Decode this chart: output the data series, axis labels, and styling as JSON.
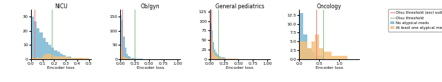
{
  "titles": [
    "NICU",
    "Ob/gyn",
    "General pediatrics",
    "Oncology"
  ],
  "xlabel": "Encoder loss",
  "blue_color": "#7ab8d4",
  "orange_color": "#f5c07a",
  "otsu_excl_color": "#f08080",
  "otsu_color": "#90c090",
  "nicu": {
    "blue_edges": [
      0.0,
      0.025,
      0.05,
      0.075,
      0.1,
      0.125,
      0.15,
      0.175,
      0.2,
      0.225,
      0.25,
      0.275,
      0.3,
      0.325,
      0.35,
      0.375,
      0.4,
      0.425,
      0.45,
      0.475,
      0.5
    ],
    "blue_counts": [
      30,
      27,
      22,
      19,
      15,
      12,
      10,
      8,
      6,
      5,
      4,
      3,
      2,
      2,
      1,
      1,
      1,
      1,
      0,
      0
    ],
    "orange_edges": [
      0.0,
      0.025,
      0.05,
      0.075,
      0.1,
      0.125,
      0.15,
      0.175,
      0.2,
      0.225,
      0.25,
      0.275,
      0.3,
      0.325,
      0.35,
      0.375,
      0.4,
      0.425,
      0.45,
      0.475,
      0.5
    ],
    "orange_counts": [
      1,
      1,
      1,
      1,
      3,
      4,
      4,
      3,
      2,
      2,
      2,
      2,
      2,
      1,
      1,
      1,
      1,
      1,
      1,
      1
    ],
    "otsu_excl": 0.03,
    "otsu": 0.18,
    "xlim": [
      0,
      0.52
    ],
    "ylim": [
      0,
      35
    ],
    "yticks": [
      0,
      10,
      20,
      30
    ],
    "xticks": [
      0.0,
      0.1,
      0.2,
      0.3,
      0.4,
      0.5
    ]
  },
  "obgyn": {
    "blue_edges": [
      0.0,
      0.025,
      0.05,
      0.075,
      0.1,
      0.125,
      0.15,
      0.175,
      0.2,
      0.225,
      0.25,
      0.275,
      0.3,
      0.325,
      0.35,
      0.375,
      0.4,
      0.425,
      0.45,
      0.475,
      0.5,
      0.525,
      0.55,
      0.575,
      0.6,
      0.625,
      0.65,
      0.675,
      0.7,
      0.725,
      0.75,
      0.775,
      0.8,
      0.825,
      0.85,
      0.875,
      0.9,
      0.925,
      0.95,
      0.975,
      1.0
    ],
    "blue_counts": [
      155,
      140,
      80,
      40,
      20,
      12,
      8,
      5,
      4,
      3,
      2,
      2,
      1,
      1,
      1,
      1,
      0,
      0,
      0,
      0,
      0,
      0,
      0,
      0,
      0,
      0,
      0,
      0,
      0,
      0,
      0,
      0,
      0,
      0,
      0,
      0,
      0,
      0,
      0,
      0
    ],
    "orange_edges": [
      0.0,
      0.025,
      0.05,
      0.075,
      0.1,
      0.125,
      0.15,
      0.175,
      0.2,
      0.225,
      0.25,
      0.275,
      0.3,
      0.325,
      0.35,
      0.375,
      0.4,
      0.425,
      0.45,
      0.475,
      0.5,
      0.525,
      0.55,
      0.575,
      0.6,
      0.625,
      0.65,
      0.675,
      0.7,
      0.725,
      0.75,
      0.775,
      0.8,
      0.825,
      0.85,
      0.875,
      0.9,
      0.925,
      0.95,
      0.975,
      1.0
    ],
    "orange_counts": [
      45,
      30,
      10,
      5,
      3,
      2,
      1,
      1,
      1,
      1,
      0,
      0,
      0,
      0,
      0,
      0,
      0,
      0,
      0,
      0,
      0,
      0,
      0,
      0,
      0,
      0,
      0,
      0,
      0,
      0,
      0,
      0,
      0,
      0,
      0,
      0,
      0,
      0,
      0,
      0
    ],
    "otsu_excl": 0.03,
    "otsu": 0.25,
    "xlim": [
      0,
      1.05
    ],
    "ylim": [
      0,
      175
    ],
    "yticks": [
      0,
      50,
      100,
      150
    ],
    "xticks": [
      0.0,
      0.25,
      0.5,
      0.75,
      1.0
    ]
  },
  "genpeds": {
    "blue_edges": [
      0.0,
      0.025,
      0.05,
      0.075,
      0.1,
      0.125,
      0.15,
      0.175,
      0.2,
      0.225,
      0.25,
      0.275,
      0.3,
      0.325,
      0.35,
      0.375,
      0.4,
      0.425,
      0.45,
      0.475,
      0.5,
      0.525,
      0.55,
      0.575,
      0.6,
      0.625,
      0.65,
      0.675,
      0.7,
      0.725,
      0.75,
      0.775,
      0.8,
      0.825,
      0.85,
      0.875,
      0.9,
      0.925,
      0.95,
      0.975,
      1.0
    ],
    "blue_counts": [
      95,
      75,
      45,
      25,
      18,
      12,
      8,
      6,
      5,
      4,
      3,
      2,
      2,
      1,
      1,
      1,
      1,
      0,
      0,
      0,
      0,
      0,
      0,
      0,
      0,
      0,
      0,
      0,
      0,
      0,
      0,
      0,
      0,
      0,
      0,
      0,
      0,
      0,
      0,
      0
    ],
    "orange_edges": [
      0.0,
      0.025,
      0.05,
      0.075,
      0.1,
      0.125,
      0.15,
      0.175,
      0.2,
      0.225,
      0.25,
      0.275,
      0.3,
      0.325,
      0.35,
      0.375,
      0.4,
      0.425,
      0.45,
      0.475,
      0.5,
      0.525,
      0.55,
      0.575,
      0.6,
      0.625,
      0.65,
      0.675,
      0.7,
      0.725,
      0.75,
      0.775,
      0.8,
      0.825,
      0.85,
      0.875,
      0.9,
      0.925,
      0.95,
      0.975,
      1.0
    ],
    "orange_counts": [
      55,
      45,
      20,
      12,
      8,
      6,
      4,
      4,
      3,
      2,
      2,
      2,
      2,
      2,
      1,
      1,
      1,
      1,
      1,
      1,
      0,
      0,
      0,
      0,
      0,
      0,
      0,
      0,
      0,
      0,
      0,
      0,
      0,
      0,
      0,
      0,
      0,
      0,
      0,
      0
    ],
    "otsu_excl": 0.03,
    "otsu": 0.15,
    "xlim": [
      0,
      1.05
    ],
    "ylim": [
      0,
      130
    ],
    "yticks": [
      0,
      25,
      50,
      75,
      100,
      125
    ],
    "xticks": [
      0.0,
      0.25,
      0.5,
      0.75,
      1.0
    ]
  },
  "oncology": {
    "blue_edges": [
      0.0,
      0.1,
      0.2,
      0.3,
      0.4,
      0.5,
      0.6,
      0.7,
      0.8,
      0.9,
      1.0,
      1.1,
      1.2,
      1.3,
      1.4,
      1.5
    ],
    "blue_counts": [
      13,
      7,
      3,
      2,
      1,
      1,
      0,
      0,
      0,
      0,
      0,
      0,
      0,
      0,
      0
    ],
    "orange_edges": [
      0.0,
      0.1,
      0.2,
      0.3,
      0.4,
      0.5,
      0.6,
      0.7,
      0.8,
      0.9,
      1.0,
      1.1,
      1.2,
      1.3,
      1.4,
      1.5
    ],
    "orange_counts": [
      5,
      5,
      3,
      5,
      7,
      3,
      2,
      2,
      1,
      1,
      1,
      1,
      0,
      0,
      0
    ],
    "otsu_excl": 0.43,
    "otsu": 0.6,
    "xlim": [
      0,
      1.5
    ],
    "ylim": [
      0,
      14
    ],
    "yticks": [
      0,
      2.5,
      5.0,
      7.5,
      10.0,
      12.5
    ],
    "xticks": [
      0.0,
      0.5,
      1.0
    ]
  },
  "legend": {
    "otsu_excl_label": "Otsu threshold (excl outliers)",
    "otsu_label": "Otsu threshold",
    "blue_label": "No atypical meds",
    "orange_label": "At least one atypical med"
  }
}
